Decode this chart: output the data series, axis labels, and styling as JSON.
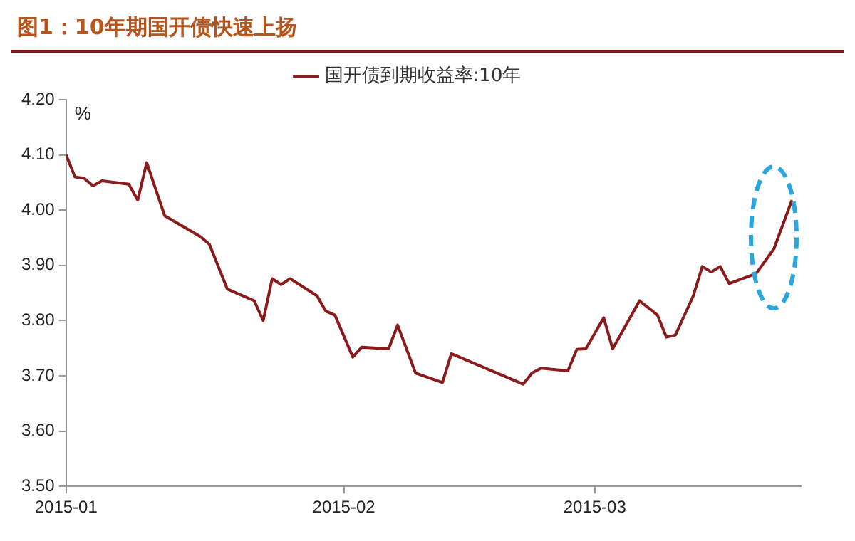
{
  "chart_data": {
    "type": "line",
    "title": "图1：10年期国开债快速上扬",
    "ylabel": "%",
    "x": [
      "2015-01-01",
      "2015-01-02",
      "2015-01-03",
      "2015-01-04",
      "2015-01-05",
      "2015-01-08",
      "2015-01-09",
      "2015-01-10",
      "2015-01-12",
      "2015-01-16",
      "2015-01-17",
      "2015-01-19",
      "2015-01-22",
      "2015-01-23",
      "2015-01-24",
      "2015-01-25",
      "2015-01-26",
      "2015-01-29",
      "2015-01-30",
      "2015-01-31",
      "2015-02-02",
      "2015-02-03",
      "2015-02-06",
      "2015-02-07",
      "2015-02-09",
      "2015-02-12",
      "2015-02-13",
      "2015-02-21",
      "2015-02-22",
      "2015-02-23",
      "2015-02-26",
      "2015-02-27",
      "2015-02-28",
      "2015-03-02",
      "2015-03-03",
      "2015-03-06",
      "2015-03-08",
      "2015-03-09",
      "2015-03-10",
      "2015-03-12",
      "2015-03-13",
      "2015-03-14",
      "2015-03-15",
      "2015-03-16",
      "2015-03-19",
      "2015-03-21",
      "2015-03-23"
    ],
    "series": [
      {
        "name": "国开债到期收益率:10年",
        "color": "#8b1a1a",
        "values": [
          4.1,
          4.06,
          4.058,
          4.044,
          4.053,
          4.047,
          4.018,
          4.086,
          3.99,
          3.952,
          3.938,
          3.857,
          3.836,
          3.8,
          3.876,
          3.865,
          3.876,
          3.845,
          3.817,
          3.81,
          3.734,
          3.752,
          3.749,
          3.792,
          3.705,
          3.688,
          3.74,
          3.685,
          3.705,
          3.714,
          3.709,
          3.748,
          3.749,
          3.805,
          3.749,
          3.836,
          3.81,
          3.77,
          3.774,
          3.845,
          3.898,
          3.888,
          3.898,
          3.867,
          3.885,
          3.93,
          4.018
        ]
      }
    ],
    "ylim": [
      3.5,
      4.2
    ],
    "yticks": [
      {
        "value": 3.5,
        "label": "3.50"
      },
      {
        "value": 3.6,
        "label": "3.60"
      },
      {
        "value": 3.7,
        "label": "3.70"
      },
      {
        "value": 3.8,
        "label": "3.80"
      },
      {
        "value": 3.9,
        "label": "3.90"
      },
      {
        "value": 4.0,
        "label": "4.00"
      },
      {
        "value": 4.1,
        "label": "4.10"
      },
      {
        "value": 4.2,
        "label": "4.20"
      }
    ],
    "xlim": [
      "2015-01-01",
      "2015-03-24"
    ],
    "xticks": [
      {
        "value": "2015-01-01",
        "label": "2015-01"
      },
      {
        "value": "2015-02-01",
        "label": "2015-02"
      },
      {
        "value": "2015-03-01",
        "label": "2015-03"
      }
    ],
    "grid": false,
    "legend": "top",
    "marker": "none",
    "line_style": "solid"
  }
}
